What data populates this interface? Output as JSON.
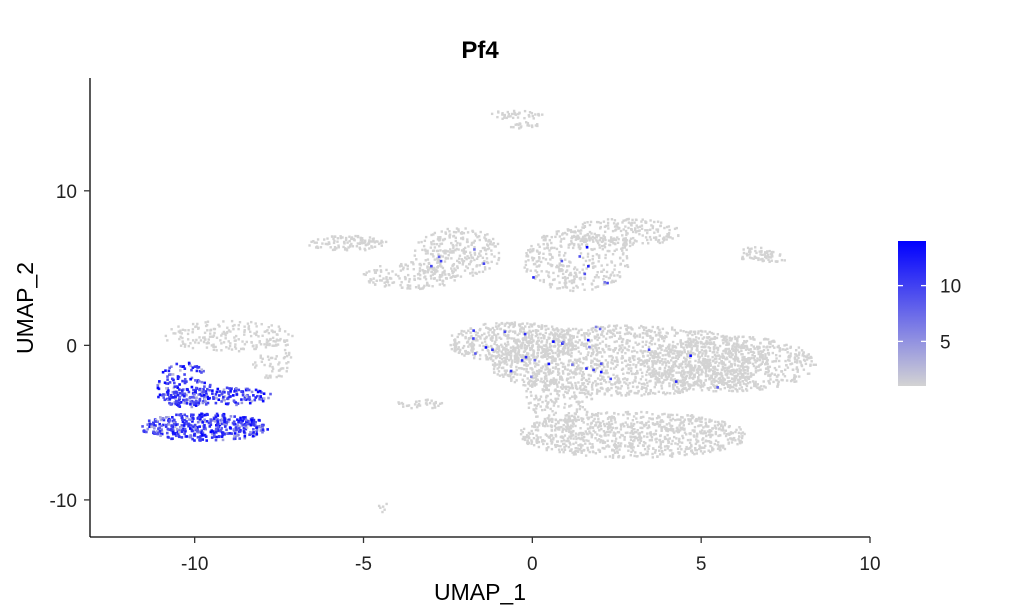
{
  "chart_data": {
    "type": "scatter",
    "title": "Pf4",
    "xlabel": "UMAP_1",
    "ylabel": "UMAP_2",
    "xlim": [
      -13.1,
      10.0
    ],
    "ylim": [
      -12.4,
      17.3
    ],
    "x_ticks": [
      -10,
      -5,
      0,
      5,
      10
    ],
    "x_tick_labels": [
      "-10",
      "-5",
      "0",
      "5",
      "10"
    ],
    "y_ticks": [
      -10,
      0,
      10
    ],
    "y_tick_labels": [
      "-10",
      "0",
      "10"
    ],
    "grid": false,
    "legend_position": "right",
    "color_scale": {
      "low_color": "#d3d3d3",
      "high_color": "#0000ff",
      "min": 1,
      "max": 14,
      "ticks": [
        5,
        10
      ],
      "tick_labels": [
        "5",
        "10"
      ]
    },
    "clusters": [
      {
        "cx": 2.8,
        "cy": -1.0,
        "rx": 4.2,
        "ry": 2.3,
        "n": 1500,
        "expr": "low"
      },
      {
        "cx": 5.8,
        "cy": -1.2,
        "rx": 2.6,
        "ry": 1.8,
        "n": 700,
        "expr": "none"
      },
      {
        "cx": 3.0,
        "cy": -5.8,
        "rx": 3.4,
        "ry": 1.5,
        "n": 900,
        "expr": "none"
      },
      {
        "cx": 0.8,
        "cy": -3.2,
        "rx": 1.0,
        "ry": 2.2,
        "n": 220,
        "expr": "none"
      },
      {
        "cx": -0.6,
        "cy": 0.2,
        "rx": 1.9,
        "ry": 1.3,
        "n": 450,
        "expr": "low"
      },
      {
        "cx": 1.3,
        "cy": 5.5,
        "rx": 1.6,
        "ry": 2.0,
        "n": 350,
        "expr": "low"
      },
      {
        "cx": 2.7,
        "cy": 7.3,
        "rx": 1.7,
        "ry": 0.9,
        "n": 220,
        "expr": "none"
      },
      {
        "cx": -2.2,
        "cy": 6.0,
        "rx": 1.3,
        "ry": 1.6,
        "n": 260,
        "expr": "low"
      },
      {
        "cx": -3.6,
        "cy": 4.5,
        "rx": 1.4,
        "ry": 0.9,
        "n": 170,
        "expr": "low"
      },
      {
        "cx": -5.5,
        "cy": 6.6,
        "rx": 1.2,
        "ry": 0.5,
        "n": 110,
        "expr": "low"
      },
      {
        "cx": 6.6,
        "cy": 5.9,
        "rx": 0.55,
        "ry": 0.45,
        "n": 40,
        "expr": "none"
      },
      {
        "cx": 7.1,
        "cy": 5.7,
        "rx": 0.5,
        "ry": 0.35,
        "n": 25,
        "expr": "none"
      },
      {
        "cx": -0.5,
        "cy": 14.9,
        "rx": 0.8,
        "ry": 0.3,
        "n": 40,
        "expr": "none"
      },
      {
        "cx": -0.2,
        "cy": 14.2,
        "rx": 0.45,
        "ry": 0.3,
        "n": 20,
        "expr": "none"
      },
      {
        "cx": -3.3,
        "cy": -3.8,
        "rx": 0.7,
        "ry": 0.35,
        "n": 35,
        "expr": "none"
      },
      {
        "cx": -4.4,
        "cy": -10.5,
        "rx": 0.15,
        "ry": 0.3,
        "n": 6,
        "expr": "low"
      },
      {
        "cx": -9.0,
        "cy": 0.6,
        "rx": 1.9,
        "ry": 1.0,
        "n": 180,
        "expr": "none"
      },
      {
        "cx": -7.7,
        "cy": -0.8,
        "rx": 0.6,
        "ry": 1.4,
        "n": 70,
        "expr": "none"
      },
      {
        "cx": -10.3,
        "cy": -2.6,
        "rx": 0.8,
        "ry": 1.5,
        "n": 140,
        "expr": "high"
      },
      {
        "cx": -9.4,
        "cy": -3.3,
        "rx": 1.7,
        "ry": 0.6,
        "n": 180,
        "expr": "high"
      },
      {
        "cx": -9.7,
        "cy": -5.3,
        "rx": 1.9,
        "ry": 0.9,
        "n": 420,
        "expr": "high"
      }
    ]
  }
}
